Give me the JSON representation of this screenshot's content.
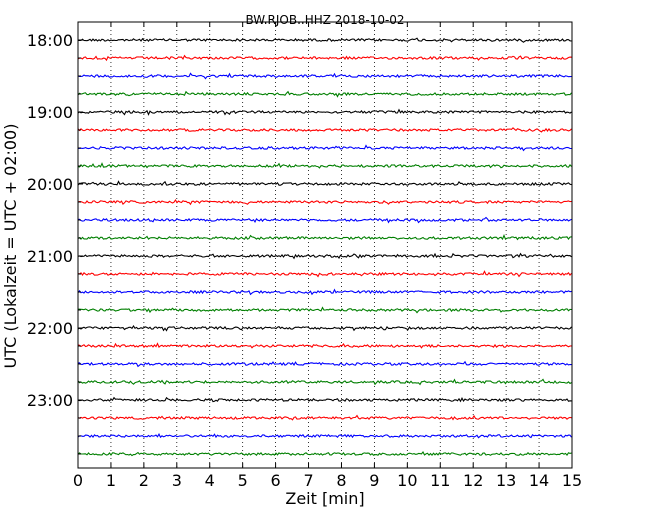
{
  "chart_data": {
    "type": "line",
    "title": "BW.RJOB..HHZ 2018-10-02",
    "xlabel": "Zeit  [min]",
    "ylabel": "UTC (Lokalzeit = UTC + 02:00)",
    "xlim": [
      0,
      15
    ],
    "x_ticks": [
      "0",
      "1",
      "2",
      "3",
      "4",
      "5",
      "6",
      "7",
      "8",
      "9",
      "10",
      "11",
      "12",
      "13",
      "14",
      "15"
    ],
    "y_tick_labels": [
      "18:00",
      "19:00",
      "20:00",
      "21:00",
      "22:00",
      "23:00"
    ],
    "grid": "vertical dotted",
    "trace_colors": [
      "#000000",
      "#ff0000",
      "#0000ff",
      "#007f00"
    ],
    "traces": [
      {
        "start": "18:00"
      },
      {
        "start": "18:15"
      },
      {
        "start": "18:30"
      },
      {
        "start": "18:45"
      },
      {
        "start": "19:00"
      },
      {
        "start": "19:15"
      },
      {
        "start": "19:30"
      },
      {
        "start": "19:45"
      },
      {
        "start": "20:00"
      },
      {
        "start": "20:15"
      },
      {
        "start": "20:30"
      },
      {
        "start": "20:45"
      },
      {
        "start": "21:00"
      },
      {
        "start": "21:15"
      },
      {
        "start": "21:30"
      },
      {
        "start": "21:45"
      },
      {
        "start": "22:00"
      },
      {
        "start": "22:15"
      },
      {
        "start": "22:30"
      },
      {
        "start": "22:45"
      },
      {
        "start": "23:00"
      },
      {
        "start": "23:15"
      },
      {
        "start": "23:30"
      },
      {
        "start": "23:45"
      }
    ]
  }
}
